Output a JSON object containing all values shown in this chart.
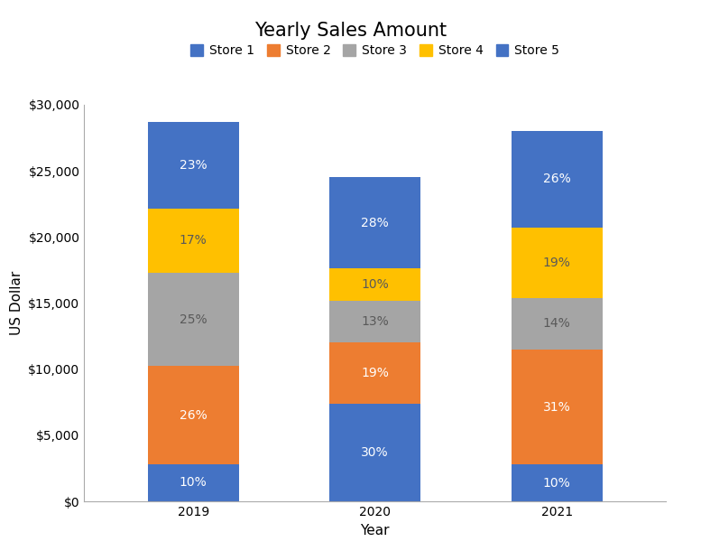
{
  "title": "Yearly Sales Amount",
  "xlabel": "Year",
  "ylabel": "US Dollar",
  "years": [
    "2019",
    "2020",
    "2021"
  ],
  "stores": [
    "Store 1",
    "Store 2",
    "Store 3",
    "Store 4",
    "Store 5"
  ],
  "colors": [
    "#4472C4",
    "#ED7D31",
    "#A5A5A5",
    "#FFC000",
    "#4472C4"
  ],
  "text_colors": [
    "white",
    "white",
    "#595959",
    "#595959",
    "white"
  ],
  "values": [
    [
      2840,
      7380,
      7100,
      4830,
      6530
    ],
    [
      7350,
      4655,
      3185,
      2450,
      6860
    ],
    [
      2800,
      8680,
      3920,
      5320,
      7280
    ]
  ],
  "percentages": [
    [
      "10%",
      "26%",
      "25%",
      "17%",
      "23%"
    ],
    [
      "30%",
      "19%",
      "13%",
      "10%",
      "28%"
    ],
    [
      "10%",
      "31%",
      "14%",
      "19%",
      "26%"
    ]
  ],
  "ylim": [
    0,
    30000
  ],
  "yticks": [
    0,
    5000,
    10000,
    15000,
    20000,
    25000,
    30000
  ],
  "ytick_labels": [
    "$0",
    "$5,000",
    "$10,000",
    "$15,000",
    "$20,000",
    "$25,000",
    "$30,000"
  ],
  "bar_width": 0.5,
  "background_color": "#FFFFFF",
  "title_fontsize": 15,
  "label_fontsize": 11,
  "tick_fontsize": 10,
  "pct_fontsize": 10,
  "legend_fontsize": 10
}
